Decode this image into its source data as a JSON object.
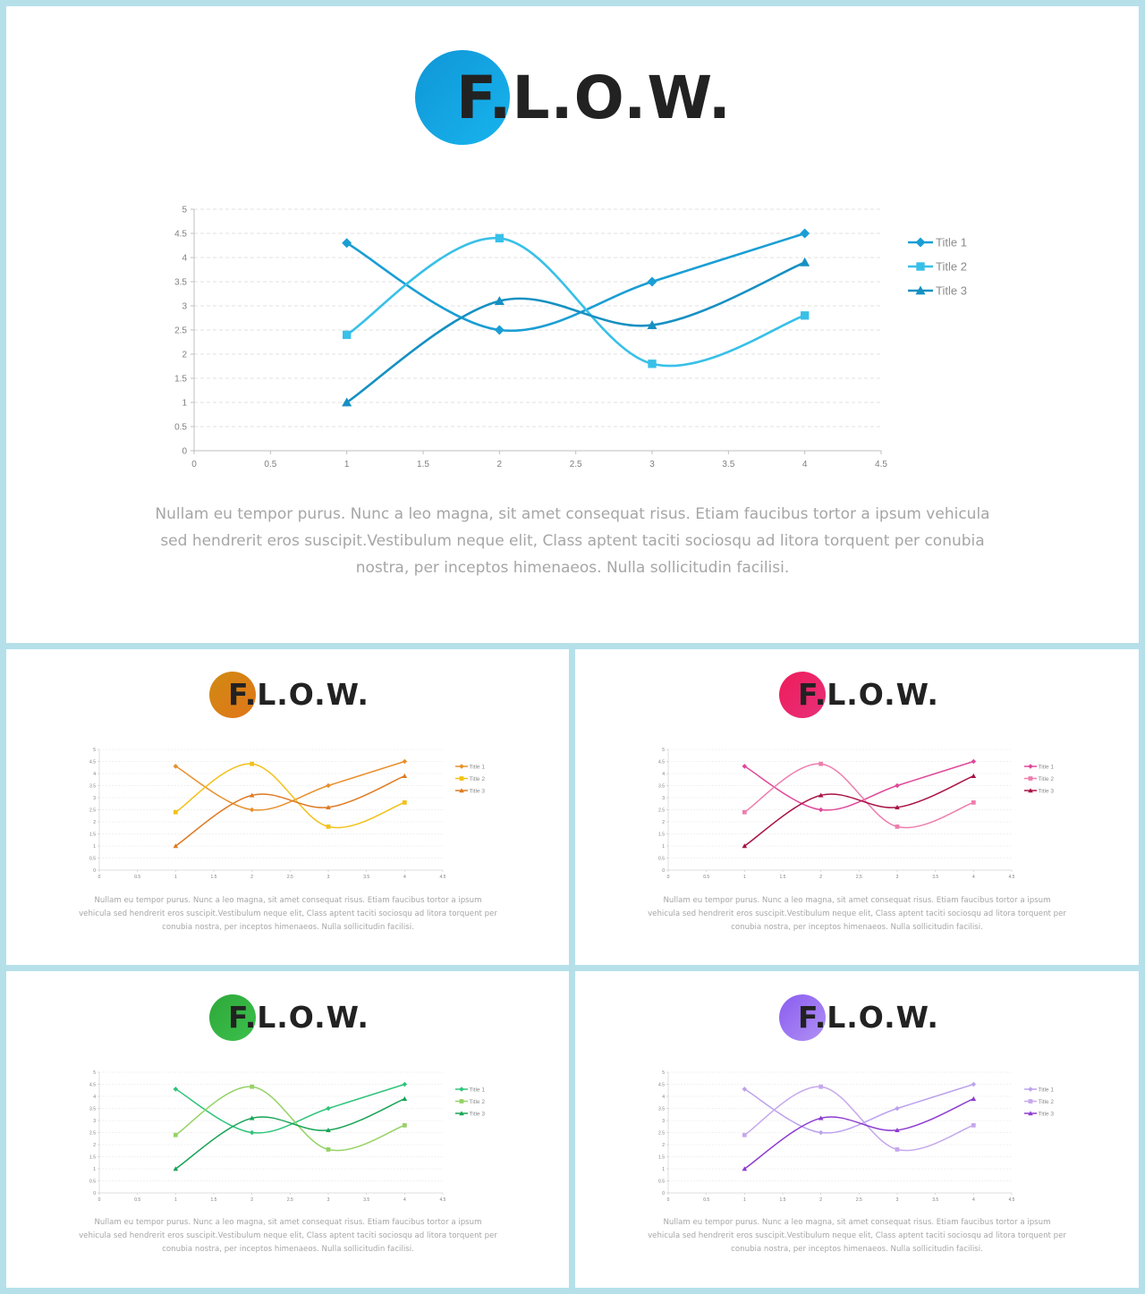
{
  "slides": [
    {
      "id": "main",
      "logo_text": "F.L.O.W.",
      "circle_colors": [
        "#1096d6",
        "#17b4ee"
      ],
      "series_colors": [
        "#1a9ed4",
        "#38c0e8",
        "#1690c2"
      ],
      "caption": "Nullam eu tempor purus. Nunc a leo magna, sit amet consequat risus. Etiam faucibus tortor a ipsum vehicula sed hendrerit eros suscipit.Vestibulum neque elit, Class aptent taciti sociosqu ad litora torquent per conubia nostra, per inceptos himenaeos. Nulla sollicitudin facilisi."
    },
    {
      "id": "orange",
      "logo_text": "F.L.O.W.",
      "circle_colors": [
        "#d08a12",
        "#e0761a"
      ],
      "series_colors": [
        "#e8902c",
        "#f2c11a",
        "#de7a22"
      ],
      "caption": "Nullam eu tempor purus. Nunc a leo magna, sit amet consequat risus. Etiam faucibus tortor a ipsum vehicula sed hendrerit eros suscipit.Vestibulum neque elit, Class aptent taciti sociosqu ad litora torquent per conubia nostra, per inceptos himenaeos. Nulla sollicitudin facilisi."
    },
    {
      "id": "pink",
      "logo_text": "F.L.O.W.",
      "circle_colors": [
        "#ee1c5a",
        "#e8307a"
      ],
      "series_colors": [
        "#e0489a",
        "#ee7eae",
        "#a81246"
      ],
      "caption": "Nullam eu tempor purus. Nunc a leo magna, sit amet consequat risus. Etiam faucibus tortor a ipsum vehicula sed hendrerit eros suscipit.Vestibulum neque elit, Class aptent taciti sociosqu ad litora torquent per conubia nostra, per inceptos himenaeos. Nulla sollicitudin facilisi."
    },
    {
      "id": "green",
      "logo_text": "F.L.O.W.",
      "circle_colors": [
        "#2ea83a",
        "#3cc04c"
      ],
      "series_colors": [
        "#2fc47a",
        "#96d266",
        "#18a456"
      ],
      "caption": "Nullam eu tempor purus. Nunc a leo magna, sit amet consequat risus. Etiam faucibus tortor a ipsum vehicula sed hendrerit eros suscipit.Vestibulum neque elit, Class aptent taciti sociosqu ad litora torquent per conubia nostra, per inceptos himenaeos. Nulla sollicitudin facilisi."
    },
    {
      "id": "purple",
      "logo_text": "F.L.O.W.",
      "circle_colors": [
        "#8a5cf0",
        "#b090f4"
      ],
      "series_colors": [
        "#bca2ee",
        "#c6a8ec",
        "#8e3cd0"
      ],
      "caption": "Nullam eu tempor purus. Nunc a leo magna, sit amet consequat risus. Etiam faucibus tortor a ipsum vehicula sed hendrerit eros suscipit.Vestibulum neque elit, Class aptent taciti sociosqu ad litora torquent per conubia nostra, per inceptos himenaeos. Nulla sollicitudin facilisi."
    }
  ],
  "chart_data": {
    "type": "line",
    "smoothed": true,
    "x_ticks": [
      "0",
      "0.5",
      "1",
      "1.5",
      "2",
      "2.5",
      "3",
      "3.5",
      "4",
      "4.5"
    ],
    "y_ticks": [
      "0",
      "0.5",
      "1",
      "1.5",
      "2",
      "2.5",
      "3",
      "3.5",
      "4",
      "4.5",
      "5"
    ],
    "xlim": [
      0,
      4.5
    ],
    "ylim": [
      0,
      5
    ],
    "grid": "horizontal-dashed",
    "legend_position": "right",
    "series": [
      {
        "name": "Title 1",
        "marker": "diamond",
        "x": [
          1,
          2,
          3,
          4
        ],
        "y": [
          4.3,
          2.5,
          3.5,
          4.5
        ]
      },
      {
        "name": "Title 2",
        "marker": "square",
        "x": [
          1,
          2,
          3,
          4
        ],
        "y": [
          2.4,
          4.4,
          1.8,
          2.8
        ]
      },
      {
        "name": "Title 3",
        "marker": "triangle",
        "x": [
          1,
          2,
          3,
          4
        ],
        "y": [
          1.0,
          3.1,
          2.6,
          3.9
        ]
      }
    ]
  }
}
